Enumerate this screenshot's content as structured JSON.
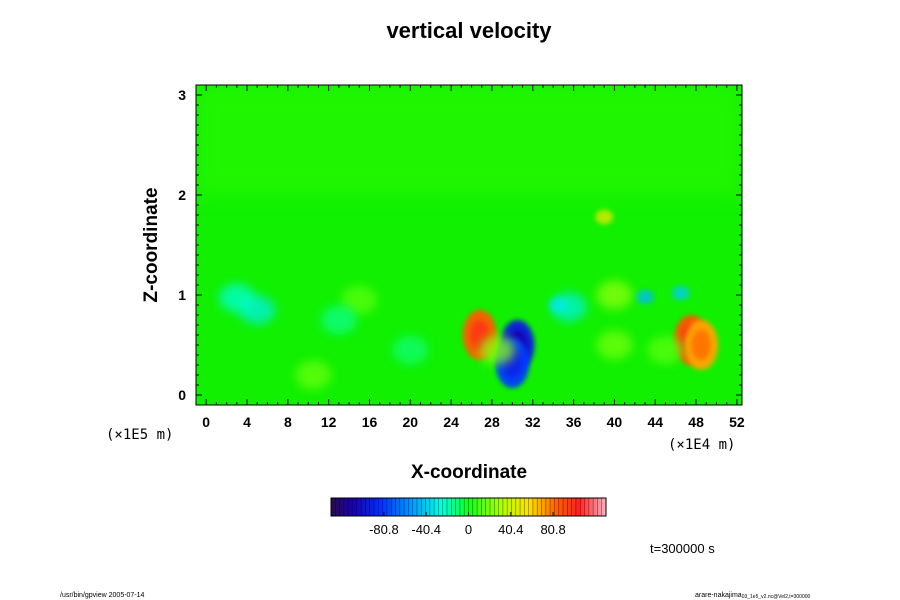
{
  "chart_data": {
    "type": "heatmap",
    "title": "vertical velocity",
    "xlabel": "X-coordinate",
    "ylabel": "Z-coordinate",
    "x_unit": "(×1E4 m)",
    "y_unit": "(×1E5 m)",
    "x_ticks": [
      "0",
      "4",
      "8",
      "12",
      "16",
      "20",
      "24",
      "28",
      "32",
      "36",
      "40",
      "44",
      "48",
      "52"
    ],
    "y_ticks": [
      "0",
      "1",
      "2",
      "3"
    ],
    "xlim": [
      -1,
      52.5
    ],
    "ylim": [
      -0.1,
      3.1
    ],
    "colorbar": {
      "ticks": [
        "-80.8",
        "-40.4",
        "0",
        "40.4",
        "80.8"
      ],
      "range": [
        -131.3,
        131.3
      ]
    },
    "features": [
      {
        "x": 26.8,
        "z": 0.6,
        "value": 85
      },
      {
        "x": 30.5,
        "z": 0.5,
        "value": -95
      },
      {
        "x": 30.0,
        "z": 0.32,
        "value": -80
      },
      {
        "x": 47.5,
        "z": 0.55,
        "value": 88
      },
      {
        "x": 48.5,
        "z": 0.5,
        "value": 70
      },
      {
        "x": 39.0,
        "z": 1.78,
        "value": 50
      },
      {
        "x": 43.0,
        "z": 0.98,
        "value": -45
      },
      {
        "x": 46.5,
        "z": 1.02,
        "value": -40
      },
      {
        "x": 34.5,
        "z": 0.9,
        "value": -35
      },
      {
        "x": 35.5,
        "z": 0.88,
        "value": -30
      },
      {
        "x": 40.0,
        "z": 1.0,
        "value": 25
      },
      {
        "x": 5.0,
        "z": 0.85,
        "value": -30
      },
      {
        "x": 3.0,
        "z": 0.97,
        "value": -25
      },
      {
        "x": 28.5,
        "z": 0.45,
        "value": 25
      },
      {
        "x": 10.5,
        "z": 0.2,
        "value": 18
      },
      {
        "x": 15.0,
        "z": 0.95,
        "value": 15
      },
      {
        "x": 40.0,
        "z": 0.5,
        "value": 20
      },
      {
        "x": 45.0,
        "z": 0.45,
        "value": 15
      },
      {
        "x": 20.0,
        "z": 0.45,
        "value": -12
      },
      {
        "x": 13.0,
        "z": 0.75,
        "value": -15
      }
    ]
  },
  "time_label": "t=300000 s",
  "footer_left": "/usr/bin/gpview 2005-07-14",
  "footer_right_main": "arare-nakajima",
  "footer_right_sub": "03_1e5_v2.nc@Vel2,t=300000"
}
